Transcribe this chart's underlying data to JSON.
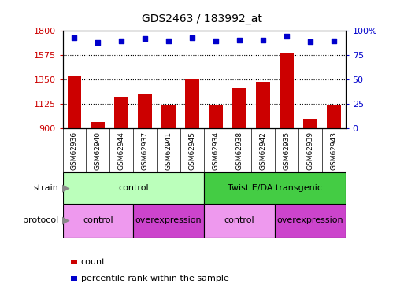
{
  "title": "GDS2463 / 183992_at",
  "samples": [
    "GSM62936",
    "GSM62940",
    "GSM62944",
    "GSM62937",
    "GSM62941",
    "GSM62945",
    "GSM62934",
    "GSM62938",
    "GSM62942",
    "GSM62935",
    "GSM62939",
    "GSM62943"
  ],
  "counts": [
    1390,
    960,
    1195,
    1215,
    1110,
    1350,
    1110,
    1270,
    1330,
    1600,
    990,
    1120
  ],
  "percentile_ranks": [
    93,
    88,
    90,
    92,
    90,
    93,
    90,
    91,
    91,
    95,
    89,
    90
  ],
  "ylim_left": [
    900,
    1800
  ],
  "ylim_right": [
    0,
    100
  ],
  "yticks_left": [
    900,
    1125,
    1350,
    1575,
    1800
  ],
  "yticks_right": [
    0,
    25,
    50,
    75,
    100
  ],
  "bar_color": "#cc0000",
  "dot_color": "#0000cc",
  "strain_groups": [
    {
      "label": "control",
      "start": 0,
      "end": 6,
      "color": "#bbffbb"
    },
    {
      "label": "Twist E/DA transgenic",
      "start": 6,
      "end": 12,
      "color": "#44cc44"
    }
  ],
  "protocol_groups": [
    {
      "label": "control",
      "start": 0,
      "end": 3,
      "color": "#ee99ee"
    },
    {
      "label": "overexpression",
      "start": 3,
      "end": 6,
      "color": "#cc44cc"
    },
    {
      "label": "control",
      "start": 6,
      "end": 9,
      "color": "#ee99ee"
    },
    {
      "label": "overexpression",
      "start": 9,
      "end": 12,
      "color": "#cc44cc"
    }
  ],
  "legend_count_label": "count",
  "legend_pct_label": "percentile rank within the sample",
  "strain_label": "strain",
  "protocol_label": "protocol",
  "tick_color_left": "#cc0000",
  "tick_color_right": "#0000cc",
  "label_box_color": "#c8c8c8",
  "arrow_color": "#888888"
}
